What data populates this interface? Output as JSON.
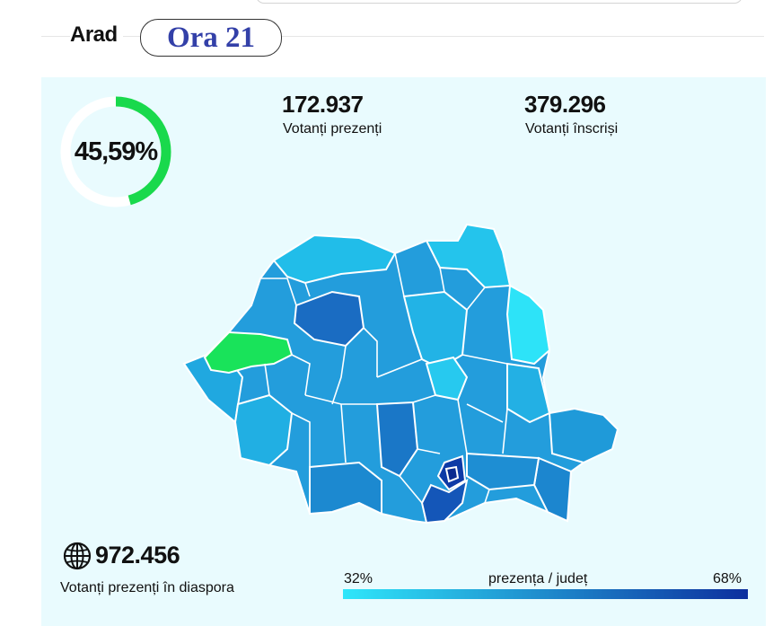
{
  "header": {
    "county": "Arad",
    "hour_label": "Ora 21"
  },
  "turnout": {
    "percent_label": "45,59%",
    "percent_value": 45.59
  },
  "stats": {
    "present_value": "172.937",
    "present_label": "Votanți prezenți",
    "registered_value": "379.296",
    "registered_label": "Votanți înscriși"
  },
  "diaspora": {
    "value": "972.456",
    "label": "Votanți prezenți în diaspora"
  },
  "legend": {
    "min": "32%",
    "title": "prezența / județ",
    "max": "68%"
  },
  "colors": {
    "ring_fill": "#19d94c",
    "ring_track": "#ffffff",
    "selected_county": "#19e35a",
    "scale_low": "#2fe6fa",
    "scale_high": "#0d2f9e",
    "panel_bg": "#e9fbfe"
  },
  "icons": {
    "globe": "globe-icon"
  }
}
